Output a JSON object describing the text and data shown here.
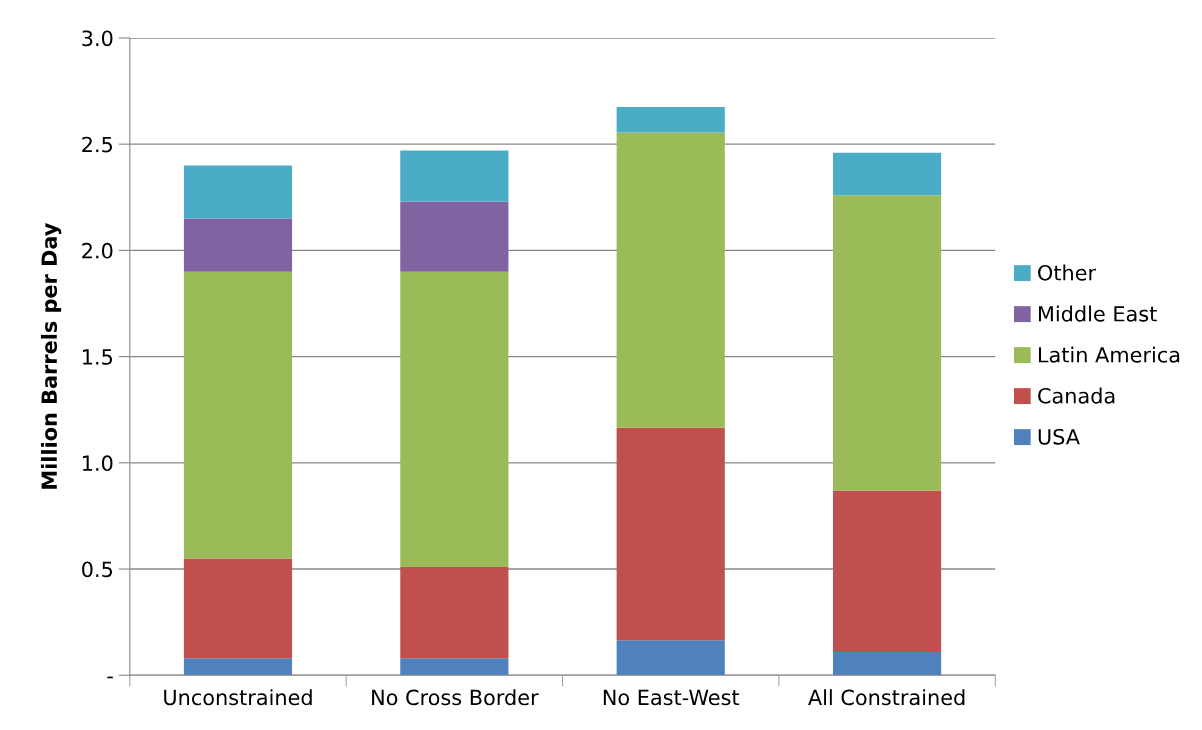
{
  "chart_data": {
    "type": "bar",
    "stacked": true,
    "ylabel": "Million Barrels per Day",
    "categories": [
      "Unconstrained",
      "No Cross Border",
      "No East-West",
      "All Constrained"
    ],
    "series": [
      {
        "name": "USA",
        "color": "#4f81bd",
        "values": [
          0.08,
          0.08,
          0.165,
          0.11
        ]
      },
      {
        "name": "Canada",
        "color": "#c0504d",
        "values": [
          0.47,
          0.43,
          1.0,
          0.76
        ]
      },
      {
        "name": "Latin America",
        "color": "#9bbb59",
        "values": [
          1.35,
          1.39,
          1.39,
          1.39
        ]
      },
      {
        "name": "Middle East",
        "color": "#8064a2",
        "values": [
          0.25,
          0.33,
          0,
          0
        ]
      },
      {
        "name": "Other",
        "color": "#4bacc6",
        "values": [
          0.25,
          0.24,
          0.12,
          0.2
        ]
      }
    ],
    "ylim": [
      0,
      3.0
    ],
    "yticks": [
      {
        "value": 0,
        "label": "-"
      },
      {
        "value": 0.5,
        "label": "0.5"
      },
      {
        "value": 1.0,
        "label": "1.0"
      },
      {
        "value": 1.5,
        "label": "1.5"
      },
      {
        "value": 2.0,
        "label": "2.0"
      },
      {
        "value": 2.5,
        "label": "2.5"
      },
      {
        "value": 3.0,
        "label": "3.0"
      }
    ],
    "grid": "y",
    "legend": "right"
  }
}
